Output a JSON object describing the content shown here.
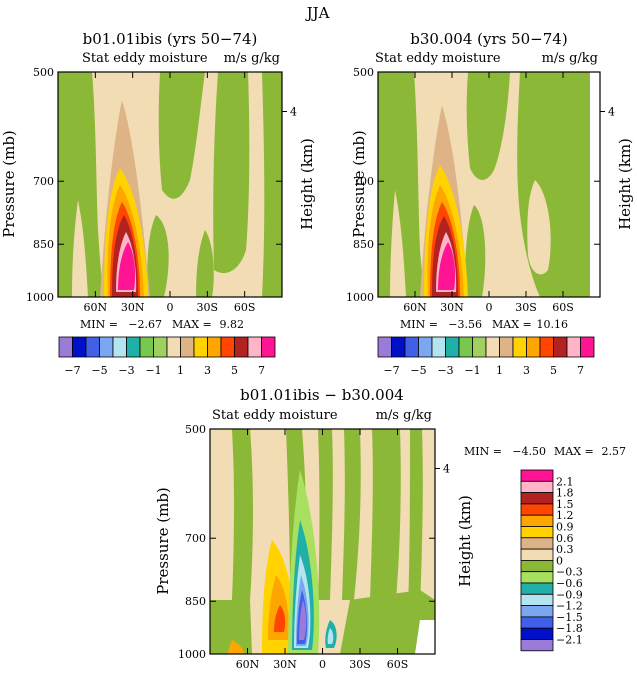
{
  "figure_title": "JJA",
  "panels": [
    {
      "title": "b01.01ibis (yrs 50−74)",
      "subtitle_left": "Stat eddy moisture",
      "subtitle_right": "m/s g/kg",
      "ylabel": "Pressure (mb)",
      "right_label": "Height (km)",
      "min_label": "MIN =",
      "min_value": "−2.67",
      "max_label": "MAX =",
      "max_value": "9.82"
    },
    {
      "title": "b30.004 (yrs 50−74)",
      "subtitle_left": "Stat eddy moisture",
      "subtitle_right": "m/s g/kg",
      "ylabel": "Pressure (mb)",
      "right_label": "Height (km)",
      "min_label": "MIN =",
      "min_value": "−3.56",
      "max_label": "MAX =",
      "max_value": "10.16"
    },
    {
      "title": "b01.01ibis − b30.004",
      "subtitle_left": "Stat eddy moisture",
      "subtitle_right": "m/s g/kg",
      "ylabel": "Pressure (mb)",
      "right_label": "Height (km)",
      "min_label": "MIN =",
      "min_value": "−4.50",
      "max_label": "MAX =",
      "max_value": "2.57"
    }
  ],
  "top_colorbar": {
    "colors": [
      "#9b7bd8",
      "#0010c8",
      "#4060e8",
      "#7aa8f0",
      "#b4e4f0",
      "#20b0a8",
      "#78c850",
      "#a0d060",
      "#f2dcb4",
      "#deb487",
      "#ffd200",
      "#ffa500",
      "#ff4500",
      "#b22222",
      "#ffb4c8",
      "#ff1493"
    ],
    "tick_labels": [
      "−7",
      "−5",
      "−3",
      "−1",
      "1",
      "3",
      "5",
      "7"
    ]
  },
  "bottom_colorbar": {
    "colors": [
      "#ff1493",
      "#ffb4c8",
      "#b22222",
      "#ff4500",
      "#ffa500",
      "#ffd200",
      "#deb487",
      "#f2dcb4",
      "#8cb838",
      "#a8e060",
      "#20b0a8",
      "#b4e4f0",
      "#7aa8f0",
      "#4060e8",
      "#0010c8",
      "#9b7bd8"
    ],
    "tick_labels": [
      "2.1",
      "1.8",
      "1.5",
      "1.2",
      "0.9",
      "0.6",
      "0.3",
      "0",
      "−0.3",
      "−0.6",
      "−0.9",
      "−1.2",
      "−1.5",
      "−1.8",
      "−2.1"
    ]
  },
  "chart_data": {
    "type": "heatmap",
    "x_ticks": [
      "60N",
      "30N",
      "0",
      "30S",
      "60S"
    ],
    "x_tick_values_deg": [
      60,
      30,
      0,
      -30,
      -60
    ],
    "xlim_deg": [
      90,
      -90
    ],
    "y_ticks": [
      "500",
      "700",
      "850",
      "1000"
    ],
    "y_tick_values_mb": [
      500,
      700,
      850,
      1000
    ],
    "ylim_mb": [
      500,
      1000
    ],
    "right_ticks": [
      "4"
    ],
    "right_tick_values_km": [
      4
    ],
    "contour_levels_panels_ab": [
      -7,
      -6,
      -5,
      -4,
      -3,
      -2,
      -1,
      0,
      1,
      2,
      3,
      4,
      5,
      6,
      7
    ],
    "contour_levels_difference": [
      -2.1,
      -1.8,
      -1.5,
      -1.2,
      -0.9,
      -0.6,
      -0.3,
      0,
      0.3,
      0.6,
      0.9,
      1.2,
      1.5,
      1.8,
      2.1
    ]
  }
}
